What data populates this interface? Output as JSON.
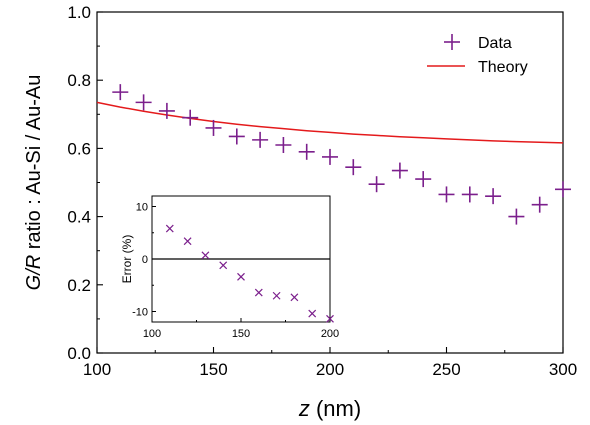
{
  "chart_data": {
    "type": "scatter",
    "main": {
      "xlim": [
        100,
        300
      ],
      "ylim": [
        0.0,
        1.0
      ],
      "xticks": [
        100,
        150,
        200,
        250,
        300
      ],
      "yticks": [
        0.0,
        0.2,
        0.4,
        0.6,
        0.8,
        1.0
      ],
      "xtick_labels": [
        "100",
        "150",
        "200",
        "250",
        "300"
      ],
      "ytick_labels": [
        "0.0",
        "0.2",
        "0.4",
        "0.6",
        "0.8",
        "1.0"
      ],
      "xlabel_italic": "z",
      "xlabel_rest": " (nm)",
      "ylabel_italic": "G/R",
      "ylabel_rest": " ratio : Au-Si / Au-Au",
      "series": [
        {
          "name": "Data",
          "marker": "plus",
          "color": "#7b1f8c",
          "x": [
            110,
            120,
            130,
            140,
            150,
            160,
            170,
            180,
            190,
            200,
            210,
            220,
            230,
            240,
            250,
            260,
            270,
            280,
            290,
            300
          ],
          "y": [
            0.765,
            0.735,
            0.71,
            0.69,
            0.66,
            0.635,
            0.625,
            0.61,
            0.59,
            0.575,
            0.545,
            0.495,
            0.535,
            0.51,
            0.465,
            0.465,
            0.46,
            0.4,
            0.435,
            0.48
          ]
        },
        {
          "name": "Theory",
          "line": true,
          "color": "#e41a1c",
          "x": [
            100,
            110,
            120,
            130,
            140,
            150,
            160,
            170,
            180,
            190,
            200,
            210,
            220,
            230,
            240,
            250,
            260,
            270,
            280,
            290,
            300
          ],
          "y": [
            0.735,
            0.721,
            0.709,
            0.698,
            0.688,
            0.679,
            0.671,
            0.664,
            0.658,
            0.652,
            0.647,
            0.642,
            0.638,
            0.634,
            0.631,
            0.628,
            0.625,
            0.622,
            0.62,
            0.618,
            0.616
          ]
        }
      ],
      "legend": [
        {
          "label": "Data"
        },
        {
          "label": "Theory"
        }
      ]
    },
    "inset": {
      "xlim": [
        100,
        200
      ],
      "ylim": [
        -12,
        12
      ],
      "xticks": [
        100,
        150,
        200
      ],
      "yticks": [
        -10,
        0,
        10
      ],
      "xtick_labels": [
        "100",
        "150",
        "200"
      ],
      "ytick_labels": [
        "-10",
        "0",
        "10"
      ],
      "ylabel": "Error (%)",
      "zero_line": 0,
      "series": [
        {
          "marker": "x",
          "color": "#7b1f8c",
          "x": [
            110,
            120,
            130,
            140,
            150,
            160,
            170,
            180,
            190,
            200
          ],
          "y": [
            5.8,
            3.4,
            0.7,
            -1.2,
            -3.4,
            -6.4,
            -7.0,
            -7.3,
            -10.4,
            -11.4
          ]
        }
      ]
    }
  }
}
